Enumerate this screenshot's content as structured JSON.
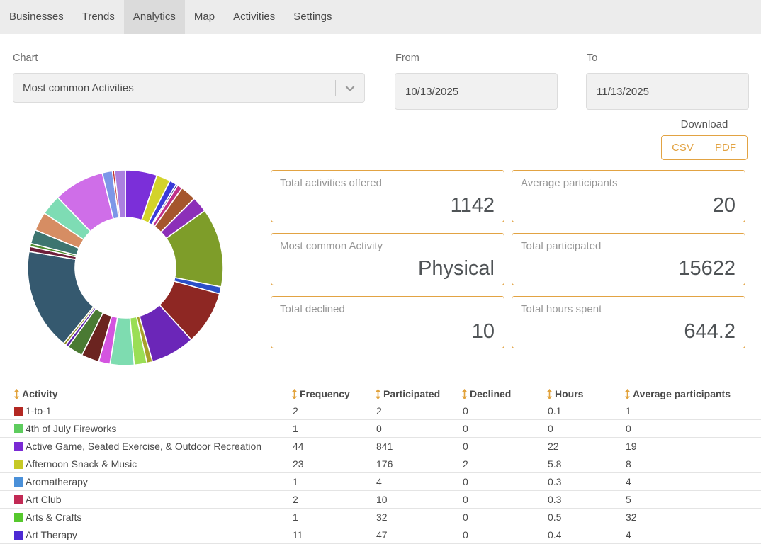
{
  "tabs": [
    {
      "label": "Businesses",
      "active": false
    },
    {
      "label": "Trends",
      "active": false
    },
    {
      "label": "Analytics",
      "active": true
    },
    {
      "label": "Map",
      "active": false
    },
    {
      "label": "Activities",
      "active": false
    },
    {
      "label": "Settings",
      "active": false
    }
  ],
  "filters": {
    "chart": {
      "label": "Chart",
      "value": "Most common Activities"
    },
    "from": {
      "label": "From",
      "value": "10/13/2025"
    },
    "to": {
      "label": "To",
      "value": "11/13/2025"
    }
  },
  "download": {
    "label": "Download",
    "buttons": [
      "CSV",
      "PDF"
    ]
  },
  "stats": [
    {
      "label": "Total activities offered",
      "value": "1142"
    },
    {
      "label": "Average participants",
      "value": "20"
    },
    {
      "label": "Most common Activity",
      "value": "Physical"
    },
    {
      "label": "Total participated",
      "value": "15622"
    },
    {
      "label": "Total declined",
      "value": "10"
    },
    {
      "label": "Total hours spent",
      "value": "644.2"
    }
  ],
  "table": {
    "headers": [
      "Activity",
      "Frequency",
      "Participated",
      "Declined",
      "Hours",
      "Average participants"
    ],
    "rows": [
      {
        "color": "#b32822",
        "cells": [
          "1-to-1",
          "2",
          "2",
          "0",
          "0.1",
          "1"
        ]
      },
      {
        "color": "#5ecc5e",
        "cells": [
          "4th of July Fireworks",
          "1",
          "0",
          "0",
          "0",
          "0"
        ]
      },
      {
        "color": "#7a2ad4",
        "cells": [
          "Active Game, Seated Exercise, & Outdoor Recreation",
          "44",
          "841",
          "0",
          "22",
          "19"
        ]
      },
      {
        "color": "#c6c926",
        "cells": [
          "Afternoon Snack & Music",
          "23",
          "176",
          "2",
          "5.8",
          "8"
        ]
      },
      {
        "color": "#4a90d9",
        "cells": [
          "Aromatherapy",
          "1",
          "4",
          "0",
          "0.3",
          "4"
        ]
      },
      {
        "color": "#c22a55",
        "cells": [
          "Art Club",
          "2",
          "10",
          "0",
          "0.3",
          "5"
        ]
      },
      {
        "color": "#56c82d",
        "cells": [
          "Arts & Crafts",
          "1",
          "32",
          "0",
          "0.5",
          "32"
        ]
      },
      {
        "color": "#4d2ad4",
        "cells": [
          "Art Therapy",
          "11",
          "47",
          "0",
          "0.4",
          "4"
        ]
      }
    ]
  },
  "chart_data": {
    "type": "pie",
    "style": "donut",
    "title": "Most common Activities",
    "legend_position": "none",
    "data_labels_shown": false,
    "note": "Donut of activity share; segments unlabeled in UI, values are estimated percents read from arc lengths",
    "segments": [
      {
        "color": "#7b2fd9",
        "value": 5.0
      },
      {
        "color": "#d3d32b",
        "value": 2.2
      },
      {
        "color": "#3b3bd9",
        "value": 1.1
      },
      {
        "color": "#1f2d8a",
        "value": 0.3
      },
      {
        "color": "#bf3089",
        "value": 0.8
      },
      {
        "color": "#a5562d",
        "value": 2.5
      },
      {
        "color": "#8c2fb8",
        "value": 2.5
      },
      {
        "color": "#7e9d29",
        "value": 12.5
      },
      {
        "color": "#2b50c8",
        "value": 1.1
      },
      {
        "color": "#8e2723",
        "value": 8.5
      },
      {
        "color": "#6b26b8",
        "value": 7.0
      },
      {
        "color": "#a8a02a",
        "value": 0.9
      },
      {
        "color": "#9ade55",
        "value": 2.0
      },
      {
        "color": "#7edcb0",
        "value": 3.8
      },
      {
        "color": "#d455e0",
        "value": 1.8
      },
      {
        "color": "#6b2420",
        "value": 2.8
      },
      {
        "color": "#4a7a33",
        "value": 2.5
      },
      {
        "color": "#5b21a8",
        "value": 0.5
      },
      {
        "color": "#8a8a20",
        "value": 0.4
      },
      {
        "color": "#35596f",
        "value": 16.0
      },
      {
        "color": "#6e1f3a",
        "value": 0.8
      },
      {
        "color": "#4e8c2e",
        "value": 0.5
      },
      {
        "color": "#3d7570",
        "value": 2.2
      },
      {
        "color": "#d68d63",
        "value": 3.0
      },
      {
        "color": "#7edcb4",
        "value": 3.2
      },
      {
        "color": "#cf6ee8",
        "value": 8.0
      },
      {
        "color": "#7d97e8",
        "value": 1.6
      },
      {
        "color": "#c03030",
        "value": 0.35
      },
      {
        "color": "#ab7fe0",
        "value": 1.7
      }
    ]
  },
  "colors": {
    "accent": "#e2a343",
    "tabbar_bg": "#ececec",
    "active_tab_bg": "#dbdbdb",
    "input_bg": "#f1f1f1"
  }
}
